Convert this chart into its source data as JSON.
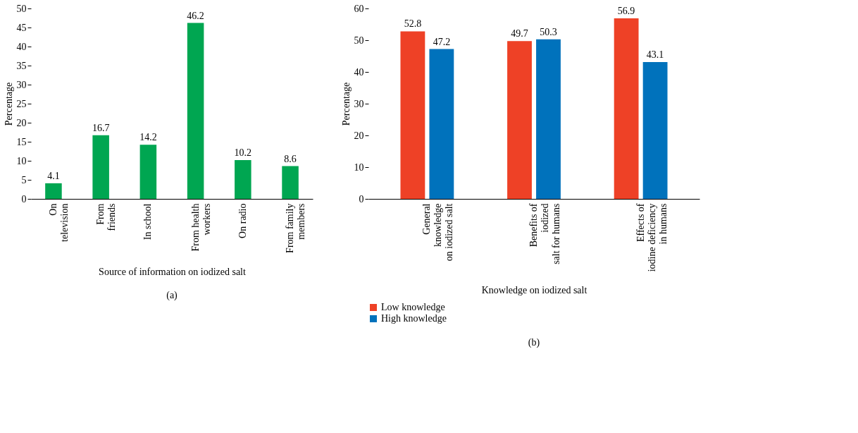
{
  "chart_data": [
    {
      "type": "bar",
      "xlabel": "Source of information on iodized salt",
      "ylabel": "Percentage",
      "categories": [
        "On\ntelevision",
        "From\nfriends",
        "In school",
        "From health\nworkers",
        "On radio",
        "From family\nmembers"
      ],
      "series": [
        {
          "color": "#00a651",
          "values": [
            4.1,
            16.7,
            14.2,
            46.2,
            10.2,
            8.6
          ]
        }
      ],
      "ylim": [
        0,
        50
      ],
      "yticks": [
        0,
        5,
        10,
        15,
        20,
        25,
        30,
        35,
        40,
        45,
        50
      ],
      "grid": false,
      "data_labels": true,
      "annotations": [
        "(a)"
      ]
    },
    {
      "type": "bar",
      "xlabel": "Knowledge on iodized salt",
      "ylabel": "Percentage",
      "categories": [
        "General\nknowledge\non iodized salt",
        "Benefits of\niodized\nsalt for humans",
        "Effects of\niodine deficiency\nin humans"
      ],
      "series": [
        {
          "name": "Low knowledge",
          "color": "#ee4126",
          "values": [
            52.8,
            49.7,
            56.9
          ]
        },
        {
          "name": "High knowledge",
          "color": "#0072bc",
          "values": [
            47.2,
            50.3,
            43.1
          ]
        }
      ],
      "ylim": [
        0,
        60
      ],
      "yticks": [
        0,
        10,
        20,
        30,
        40,
        50,
        60
      ],
      "grid": false,
      "legend": "bottom left",
      "data_labels": true,
      "annotations": [
        "(b)"
      ]
    }
  ]
}
